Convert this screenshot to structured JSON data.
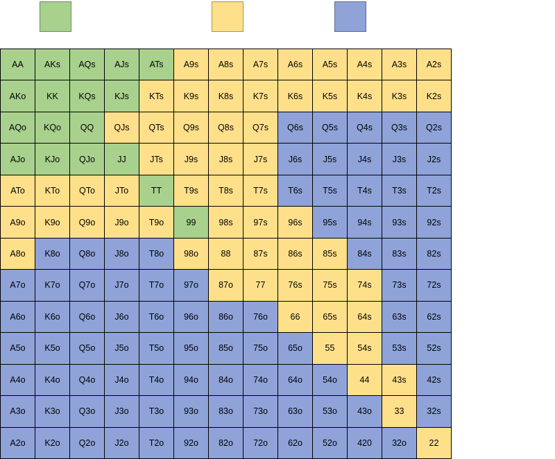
{
  "colors": {
    "raise": "#a9d18e",
    "call": "#ffe08a",
    "fold": "#8fa3d9"
  },
  "legend": [
    {
      "key": "raise",
      "label": ""
    },
    {
      "key": "call",
      "label": ""
    },
    {
      "key": "fold",
      "label": ""
    }
  ],
  "chart_data": {
    "type": "table",
    "grid": [
      [
        "AA",
        "AKs",
        "AQs",
        "AJs",
        "ATs",
        "A9s",
        "A8s",
        "A7s",
        "A6s",
        "A5s",
        "A4s",
        "A3s",
        "A2s"
      ],
      [
        "AKo",
        "KK",
        "KQs",
        "KJs",
        "KTs",
        "K9s",
        "K8s",
        "K7s",
        "K6s",
        "K5s",
        "K4s",
        "K3s",
        "K2s"
      ],
      [
        "AQo",
        "KQo",
        "QQ",
        "QJs",
        "QTs",
        "Q9s",
        "Q8s",
        "Q7s",
        "Q6s",
        "Q5s",
        "Q4s",
        "Q3s",
        "Q2s"
      ],
      [
        "AJo",
        "KJo",
        "QJo",
        "JJ",
        "JTs",
        "J9s",
        "J8s",
        "J7s",
        "J6s",
        "J5s",
        "J4s",
        "J3s",
        "J2s"
      ],
      [
        "ATo",
        "KTo",
        "QTo",
        "JTo",
        "TT",
        "T9s",
        "T8s",
        "T7s",
        "T6s",
        "T5s",
        "T4s",
        "T3s",
        "T2s"
      ],
      [
        "A9o",
        "K9o",
        "Q9o",
        "J9o",
        "T9o",
        "99",
        "98s",
        "97s",
        "96s",
        "95s",
        "94s",
        "93s",
        "92s"
      ],
      [
        "A8o",
        "K8o",
        "Q8o",
        "J8o",
        "T8o",
        "98o",
        "88",
        "87s",
        "86s",
        "85s",
        "84s",
        "83s",
        "82s"
      ],
      [
        "A7o",
        "K7o",
        "Q7o",
        "J7o",
        "T7o",
        "97o",
        "87o",
        "77",
        "76s",
        "75s",
        "74s",
        "73s",
        "72s"
      ],
      [
        "A6o",
        "K6o",
        "Q6o",
        "J6o",
        "T6o",
        "96o",
        "86o",
        "76o",
        "66",
        "65s",
        "64s",
        "63s",
        "62s"
      ],
      [
        "A5o",
        "K5o",
        "Q5o",
        "J5o",
        "T5o",
        "95o",
        "85o",
        "75o",
        "65o",
        "55",
        "54s",
        "53s",
        "52s"
      ],
      [
        "A4o",
        "K4o",
        "Q4o",
        "J4o",
        "T4o",
        "94o",
        "84o",
        "74o",
        "64o",
        "54o",
        "44",
        "43s",
        "42s"
      ],
      [
        "A3o",
        "K3o",
        "Q3o",
        "J3o",
        "T3o",
        "93o",
        "83o",
        "73o",
        "63o",
        "53o",
        "43o",
        "33",
        "32s"
      ],
      [
        "A2o",
        "K2o",
        "Q2o",
        "J2o",
        "T2o",
        "92o",
        "82o",
        "72o",
        "62o",
        "52o",
        "420",
        "32o",
        "22"
      ]
    ],
    "actions": [
      [
        "R",
        "R",
        "R",
        "R",
        "R",
        "C",
        "C",
        "C",
        "C",
        "C",
        "C",
        "C",
        "C"
      ],
      [
        "R",
        "R",
        "R",
        "R",
        "C",
        "C",
        "C",
        "C",
        "C",
        "C",
        "C",
        "C",
        "C"
      ],
      [
        "R",
        "R",
        "R",
        "C",
        "C",
        "C",
        "C",
        "C",
        "F",
        "F",
        "F",
        "F",
        "F"
      ],
      [
        "R",
        "R",
        "R",
        "R",
        "C",
        "C",
        "C",
        "C",
        "F",
        "F",
        "F",
        "F",
        "F"
      ],
      [
        "C",
        "C",
        "C",
        "C",
        "R",
        "C",
        "C",
        "C",
        "F",
        "F",
        "F",
        "F",
        "F"
      ],
      [
        "C",
        "C",
        "C",
        "C",
        "C",
        "R",
        "C",
        "C",
        "C",
        "F",
        "F",
        "F",
        "F"
      ],
      [
        "C",
        "F",
        "F",
        "F",
        "F",
        "C",
        "C",
        "C",
        "C",
        "C",
        "F",
        "F",
        "F"
      ],
      [
        "F",
        "F",
        "F",
        "F",
        "F",
        "F",
        "C",
        "C",
        "C",
        "C",
        "C",
        "F",
        "F"
      ],
      [
        "F",
        "F",
        "F",
        "F",
        "F",
        "F",
        "F",
        "F",
        "C",
        "C",
        "C",
        "F",
        "F"
      ],
      [
        "F",
        "F",
        "F",
        "F",
        "F",
        "F",
        "F",
        "F",
        "F",
        "C",
        "C",
        "F",
        "F"
      ],
      [
        "F",
        "F",
        "F",
        "F",
        "F",
        "F",
        "F",
        "F",
        "F",
        "F",
        "C",
        "C",
        "F"
      ],
      [
        "F",
        "F",
        "F",
        "F",
        "F",
        "F",
        "F",
        "F",
        "F",
        "F",
        "F",
        "C",
        "F"
      ],
      [
        "F",
        "F",
        "F",
        "F",
        "F",
        "F",
        "F",
        "F",
        "F",
        "F",
        "F",
        "F",
        "C"
      ]
    ]
  }
}
